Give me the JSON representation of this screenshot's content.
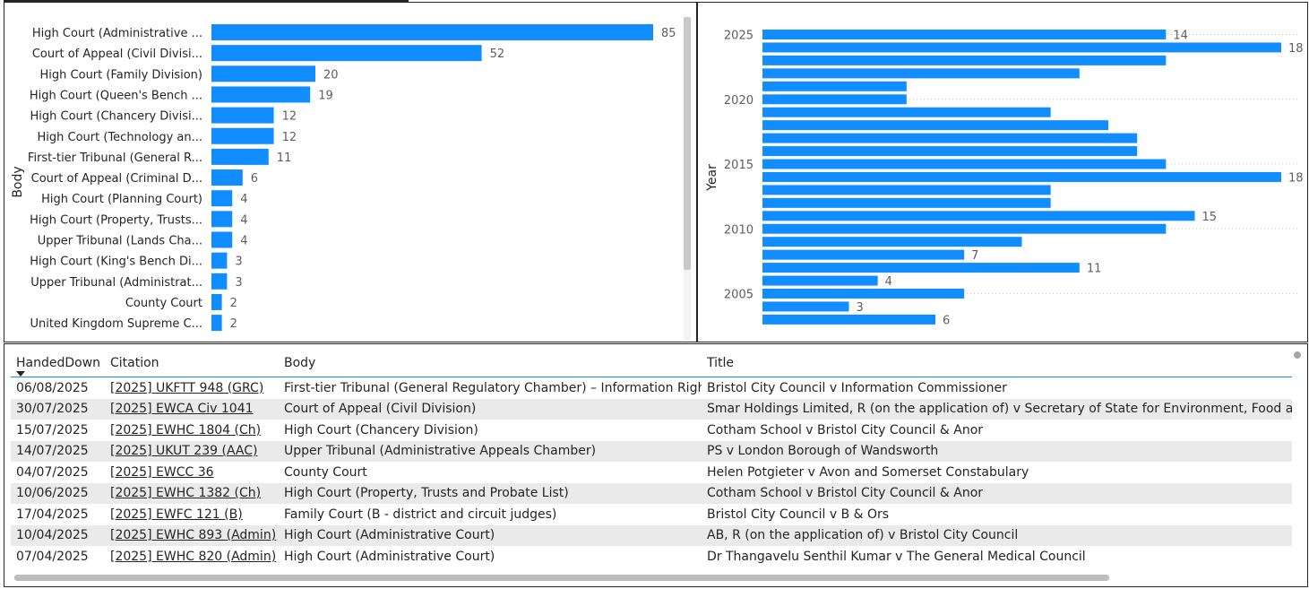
{
  "colors": {
    "bar": "#118DFF",
    "text": "#252423",
    "grid": "#c8c8c8",
    "row_alt": "#eaeaea",
    "header_line": "#118dff"
  },
  "chart_data": [
    {
      "type": "bar",
      "orientation": "horizontal",
      "ylabel": "Body",
      "categories": [
        "High Court (Administrative ...",
        "Court of Appeal (Civil Divisi...",
        "High Court (Family Division)",
        "High Court (Queen's Bench ...",
        "High Court (Chancery Divisi...",
        "High Court (Technology an...",
        "First-tier Tribunal (General R...",
        "Court of Appeal (Criminal D...",
        "High Court (Planning Court)",
        "High Court (Property, Trusts...",
        "Upper Tribunal (Lands Cha...",
        "High Court (King's Bench Di...",
        "Upper Tribunal (Administrat...",
        "County Court",
        "United Kingdom Supreme C..."
      ],
      "values": [
        85,
        52,
        20,
        19,
        12,
        12,
        11,
        6,
        4,
        4,
        4,
        3,
        3,
        2,
        2
      ],
      "data_labels": true,
      "xlim": [
        0,
        85
      ]
    },
    {
      "type": "bar",
      "orientation": "horizontal",
      "ylabel": "Year",
      "years": [
        2025,
        2024,
        2023,
        2022,
        2021,
        2020,
        2019,
        2018,
        2017,
        2016,
        2015,
        2014,
        2013,
        2012,
        2011,
        2010,
        2009,
        2008,
        2007,
        2006,
        2005,
        2004,
        2003
      ],
      "values": [
        14,
        18,
        14,
        11,
        5,
        5,
        10,
        12,
        13,
        13,
        14,
        18,
        10,
        10,
        15,
        14,
        9,
        7,
        11,
        4,
        7,
        3,
        6
      ],
      "labeled_indices": [
        0,
        1,
        11,
        14,
        17,
        18,
        19,
        21,
        22
      ],
      "tick_labels": [
        "2025",
        "2020",
        "2015",
        "2010",
        "2005"
      ],
      "grid": "dotted",
      "xlim": [
        0,
        18
      ]
    }
  ],
  "table": {
    "columns": [
      "HandedDown",
      "Citation",
      "Body",
      "Title"
    ],
    "rows": [
      [
        "06/08/2025",
        "[2025] UKFTT 948 (GRC)",
        "First-tier Tribunal (General Regulatory Chamber) – Information Rights",
        "Bristol City Council v Information Commissioner"
      ],
      [
        "30/07/2025",
        "[2025] EWCA Civ 1041",
        "Court of Appeal (Civil Division)",
        "Smar Holdings Limited, R (on the application of) v Secretary of State for Environment, Food and Ru"
      ],
      [
        "15/07/2025",
        "[2025] EWHC 1804 (Ch)",
        "High Court (Chancery Division)",
        "Cotham School v Bristol City Council & Anor"
      ],
      [
        "14/07/2025",
        "[2025] UKUT 239 (AAC)",
        "Upper Tribunal (Administrative Appeals Chamber)",
        "PS v London Borough of Wandsworth"
      ],
      [
        "04/07/2025",
        "[2025] EWCC 36",
        "County Court",
        "Helen Potgieter v Avon and Somerset Constabulary"
      ],
      [
        "10/06/2025",
        "[2025] EWHC 1382 (Ch)",
        "High Court (Property, Trusts and Probate List)",
        "Cotham School v Bristol City Council & Anor"
      ],
      [
        "17/04/2025",
        "[2025] EWFC 121 (B)",
        "Family Court (B - district and circuit judges)",
        "Bristol City Council v B & Ors"
      ],
      [
        "10/04/2025",
        "[2025] EWHC 893 (Admin)",
        "High Court (Administrative Court)",
        "AB, R (on the application of) v Bristol City Council"
      ],
      [
        "07/04/2025",
        "[2025] EWHC 820 (Admin)",
        "High Court (Administrative Court)",
        "Dr Thangavelu Senthil Kumar v The General Medical Council"
      ]
    ]
  }
}
